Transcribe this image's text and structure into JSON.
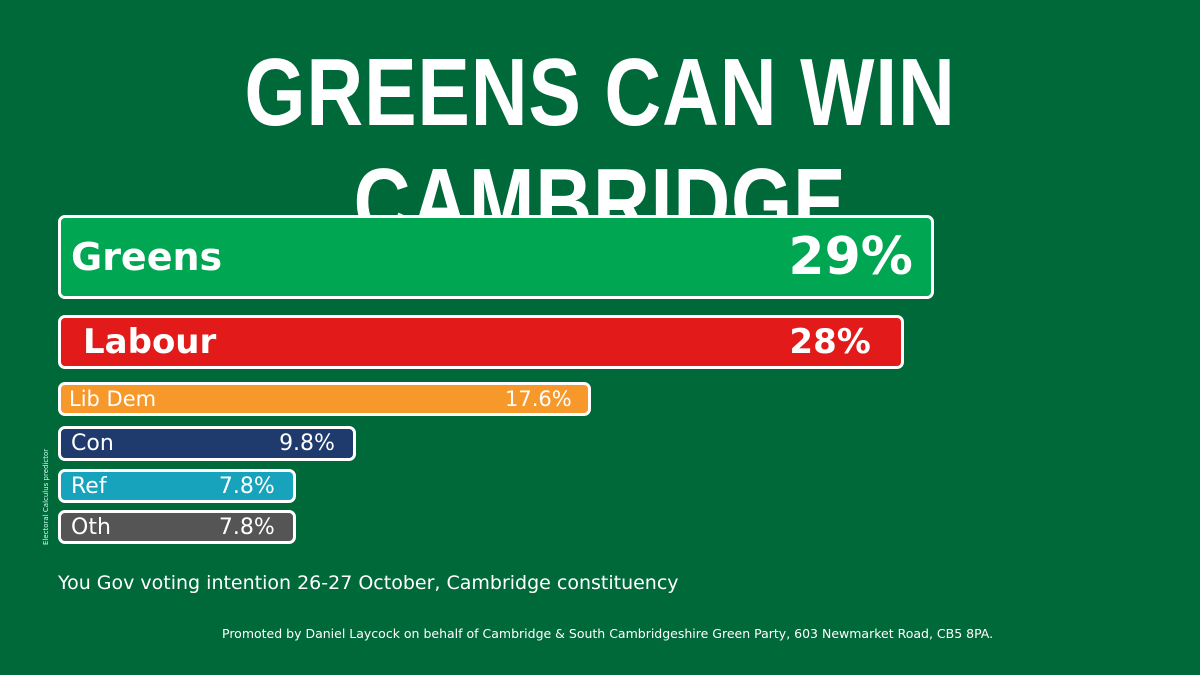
{
  "chart_data": {
    "type": "bar",
    "orientation": "horizontal",
    "title": "GREENS CAN WIN CAMBRIDGE",
    "categories": [
      "Greens",
      "Labour",
      "Lib Dem",
      "Con",
      "Ref",
      "Oth"
    ],
    "values": [
      29,
      28,
      17.6,
      9.8,
      7.8,
      7.8
    ],
    "labels": [
      "29%",
      "28%",
      "17.6%",
      "9.8%",
      "7.8%",
      "7.8%"
    ],
    "colors": [
      "#00a651",
      "#e21a1a",
      "#f7982a",
      "#1f3b6e",
      "#17a3bb",
      "#555555"
    ],
    "xlabel": "",
    "ylabel": ""
  },
  "caption": "You Gov voting intention 26-27 October, Cambridge constituency",
  "source_note": "Electoral Calculus predictor",
  "promoted_by": "Promoted by Daniel Laycock on behalf of  Cambridge & South Cambridgeshire Green Party, 603 Newmarket Road, CB5 8PA.",
  "background": "#00693a"
}
